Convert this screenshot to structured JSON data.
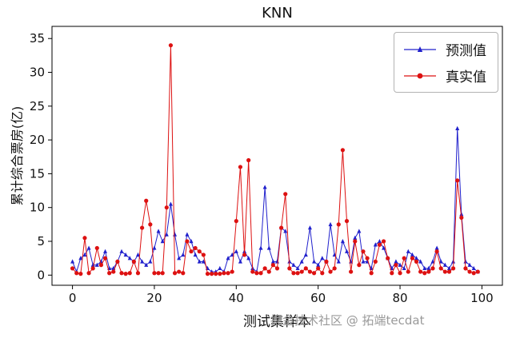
{
  "watermark": "掘金技术社区 @ 拓端tecdat",
  "chart_data": {
    "type": "line",
    "title": "KNN",
    "xlabel": "测试集样本",
    "ylabel": "累计综合票房(亿)",
    "xlim": [
      -5,
      105
    ],
    "ylim": [
      -1.5,
      36.8
    ],
    "xticks": [
      0,
      20,
      40,
      60,
      80,
      100
    ],
    "yticks": [
      0,
      5,
      10,
      15,
      20,
      25,
      30,
      35
    ],
    "grid": false,
    "legend_position": "upper right",
    "x": [
      0,
      1,
      2,
      3,
      4,
      5,
      6,
      7,
      8,
      9,
      10,
      11,
      12,
      13,
      14,
      15,
      16,
      17,
      18,
      19,
      20,
      21,
      22,
      23,
      24,
      25,
      26,
      27,
      28,
      29,
      30,
      31,
      32,
      33,
      34,
      35,
      36,
      37,
      38,
      39,
      40,
      41,
      42,
      43,
      44,
      45,
      46,
      47,
      48,
      49,
      50,
      51,
      52,
      53,
      54,
      55,
      56,
      57,
      58,
      59,
      60,
      61,
      62,
      63,
      64,
      65,
      66,
      67,
      68,
      69,
      70,
      71,
      72,
      73,
      74,
      75,
      76,
      77,
      78,
      79,
      80,
      81,
      82,
      83,
      84,
      85,
      86,
      87,
      88,
      89,
      90,
      91,
      92,
      93,
      94,
      95,
      96,
      97,
      98,
      99
    ],
    "series": [
      {
        "name": "预测值",
        "color": "#2020cc",
        "marker": "triangle",
        "values": [
          2,
          0.5,
          2.5,
          3,
          4,
          1.5,
          1.5,
          2,
          3.5,
          1,
          1,
          2,
          3.5,
          3,
          2.5,
          2,
          3,
          2,
          1.5,
          2,
          4,
          6.5,
          5,
          6,
          10.5,
          6,
          2.5,
          3,
          6,
          5,
          3,
          2,
          2,
          1,
          0.5,
          0.5,
          1,
          0.5,
          2.5,
          3,
          3.5,
          2,
          3.5,
          2.5,
          1,
          0.5,
          4,
          13,
          4,
          2,
          2,
          7,
          6.5,
          2,
          1.5,
          1,
          2,
          3,
          7,
          2,
          1.5,
          2.5,
          2,
          7.5,
          3,
          2,
          5,
          3.5,
          2,
          5.5,
          6.5,
          2,
          2,
          1,
          4.5,
          5,
          4,
          2.5,
          1,
          2,
          1.5,
          1,
          3.5,
          3,
          2.5,
          2,
          1,
          1,
          2,
          4,
          2,
          1.5,
          1,
          2,
          21.7,
          9,
          2,
          1.5,
          1,
          0.5
        ]
      },
      {
        "name": "真实值",
        "color": "#dd1111",
        "marker": "circle",
        "values": [
          1,
          0.3,
          0.2,
          5.5,
          0.3,
          1,
          4,
          1.5,
          2.5,
          0.3,
          0.5,
          2,
          0.3,
          0.2,
          0.3,
          2,
          0.3,
          7,
          11,
          7.5,
          0.3,
          0.3,
          0.3,
          10,
          34,
          0.3,
          0.5,
          0.3,
          5,
          3.5,
          4,
          3.5,
          3,
          0.2,
          0.2,
          0.2,
          0.2,
          0.3,
          0.3,
          0.5,
          8,
          16,
          3,
          17,
          0.5,
          0.3,
          0.3,
          1,
          0.5,
          1.5,
          1,
          7,
          12,
          1,
          0.3,
          0.3,
          0.5,
          1,
          0.5,
          0.3,
          1,
          0.3,
          2,
          0.5,
          1,
          7.5,
          18.5,
          8,
          0.5,
          5,
          1.5,
          3.5,
          2.5,
          0.3,
          2,
          4.5,
          5,
          2.5,
          0.3,
          1.5,
          0.3,
          2.5,
          0.5,
          2.5,
          2,
          0.5,
          0.3,
          0.5,
          1,
          3.5,
          1,
          0.5,
          0.5,
          1,
          14,
          8.5,
          1,
          0.5,
          0.3,
          0.5
        ]
      }
    ]
  }
}
